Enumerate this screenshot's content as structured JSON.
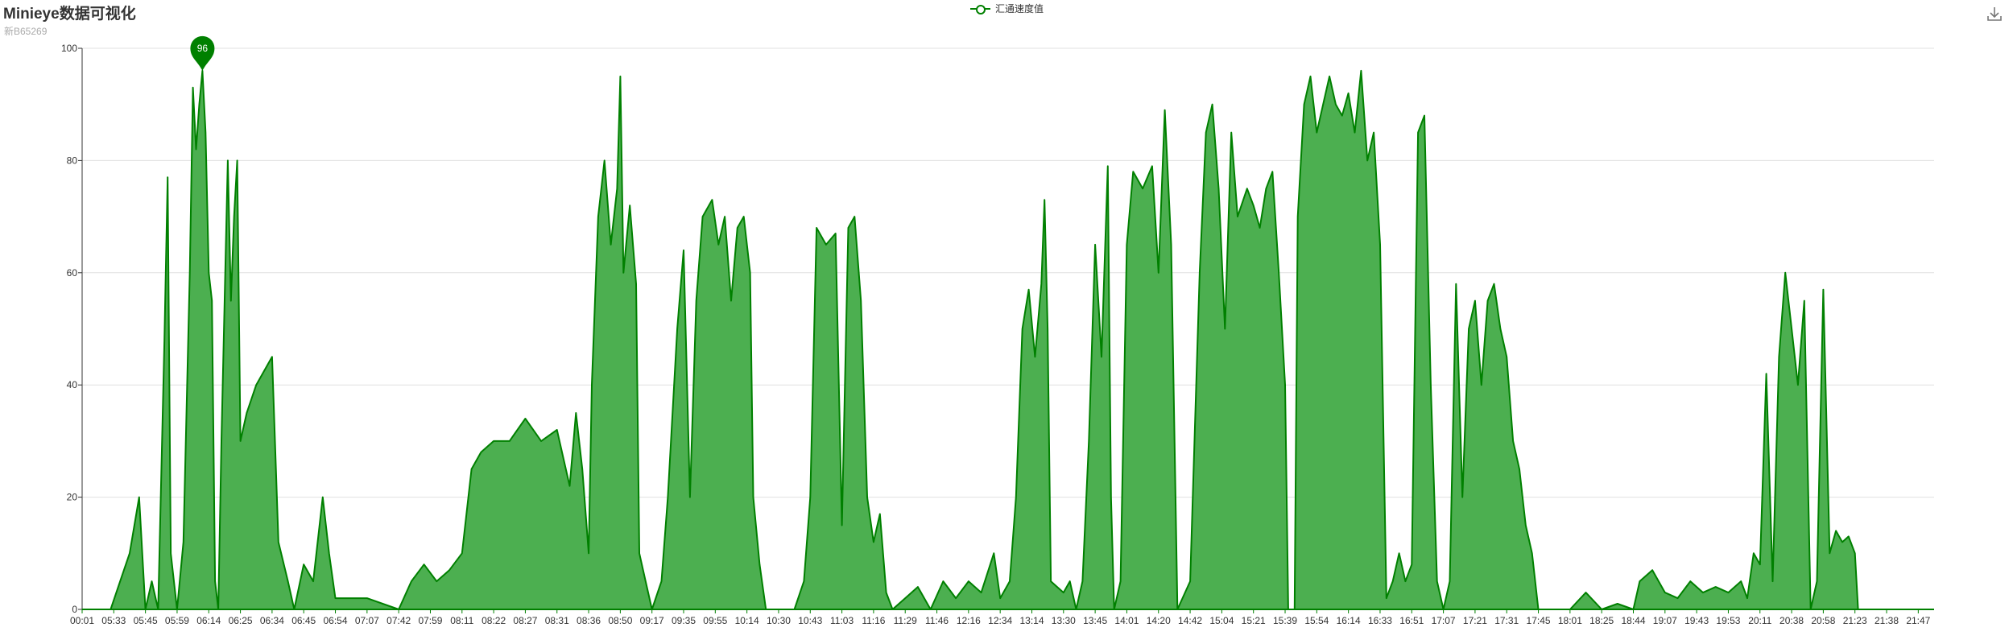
{
  "header": {
    "title": "Minieye数据可视化",
    "subtitle": "新B65269",
    "download_icon": "download-icon"
  },
  "colors": {
    "series": "#008000",
    "area": "#4caf50",
    "grid": "#e0e0e0",
    "axis": "#333333"
  },
  "chart_data": {
    "type": "area",
    "title": "Minieye数据可视化",
    "subtitle": "新B65269",
    "legend": "top-center",
    "grid": true,
    "xlabel": "",
    "ylabel": "",
    "ylim": [
      0,
      100
    ],
    "yticks": [
      0,
      20,
      40,
      60,
      80,
      100
    ],
    "xticks": [
      "00:01",
      "05:33",
      "05:45",
      "05:59",
      "06:14",
      "06:25",
      "06:34",
      "06:45",
      "06:54",
      "07:07",
      "07:42",
      "07:59",
      "08:11",
      "08:22",
      "08:27",
      "08:31",
      "08:36",
      "08:50",
      "09:17",
      "09:35",
      "09:55",
      "10:14",
      "10:30",
      "10:43",
      "11:03",
      "11:16",
      "11:29",
      "11:46",
      "12:16",
      "12:34",
      "13:14",
      "13:30",
      "13:45",
      "14:01",
      "14:20",
      "14:42",
      "15:04",
      "15:21",
      "15:39",
      "15:54",
      "16:14",
      "16:33",
      "16:51",
      "17:07",
      "17:21",
      "17:31",
      "17:45",
      "18:01",
      "18:25",
      "18:44",
      "19:07",
      "19:43",
      "19:53",
      "20:11",
      "20:38",
      "20:58",
      "21:23",
      "21:38",
      "21:47"
    ],
    "series": [
      {
        "name": "汇通速度值",
        "x_start": 0,
        "x_end": 58.5,
        "points": [
          [
            0,
            0
          ],
          [
            0.9,
            0
          ],
          [
            1.2,
            5
          ],
          [
            1.5,
            10
          ],
          [
            1.8,
            20
          ],
          [
            2.0,
            0
          ],
          [
            2.2,
            5
          ],
          [
            2.4,
            0
          ],
          [
            2.6,
            48
          ],
          [
            2.7,
            77
          ],
          [
            2.8,
            10
          ],
          [
            3.0,
            0
          ],
          [
            3.2,
            12
          ],
          [
            3.4,
            60
          ],
          [
            3.5,
            93
          ],
          [
            3.6,
            82
          ],
          [
            3.7,
            90
          ],
          [
            3.8,
            96
          ],
          [
            3.9,
            85
          ],
          [
            4.0,
            60
          ],
          [
            4.1,
            55
          ],
          [
            4.2,
            5
          ],
          [
            4.3,
            0
          ],
          [
            4.4,
            30
          ],
          [
            4.6,
            80
          ],
          [
            4.7,
            55
          ],
          [
            4.8,
            70
          ],
          [
            4.9,
            80
          ],
          [
            5.0,
            30
          ],
          [
            5.2,
            35
          ],
          [
            5.5,
            40
          ],
          [
            6.0,
            45
          ],
          [
            6.2,
            12
          ],
          [
            6.5,
            5
          ],
          [
            6.7,
            0
          ],
          [
            7.0,
            8
          ],
          [
            7.3,
            5
          ],
          [
            7.6,
            20
          ],
          [
            7.8,
            10
          ],
          [
            8.0,
            2
          ],
          [
            9.0,
            2
          ],
          [
            10.0,
            0
          ],
          [
            10.4,
            5
          ],
          [
            10.8,
            8
          ],
          [
            11.2,
            5
          ],
          [
            11.6,
            7
          ],
          [
            12.0,
            10
          ],
          [
            12.3,
            25
          ],
          [
            12.6,
            28
          ],
          [
            13.0,
            30
          ],
          [
            13.5,
            30
          ],
          [
            14.0,
            34
          ],
          [
            14.5,
            30
          ],
          [
            15.0,
            32
          ],
          [
            15.4,
            22
          ],
          [
            15.6,
            35
          ],
          [
            15.8,
            25
          ],
          [
            16.0,
            10
          ],
          [
            16.1,
            40
          ],
          [
            16.3,
            70
          ],
          [
            16.5,
            80
          ],
          [
            16.7,
            65
          ],
          [
            16.9,
            75
          ],
          [
            17.0,
            95
          ],
          [
            17.1,
            60
          ],
          [
            17.3,
            72
          ],
          [
            17.5,
            58
          ],
          [
            17.6,
            10
          ],
          [
            17.8,
            5
          ],
          [
            18.0,
            0
          ],
          [
            18.3,
            5
          ],
          [
            18.5,
            20
          ],
          [
            18.8,
            50
          ],
          [
            19.0,
            64
          ],
          [
            19.2,
            20
          ],
          [
            19.4,
            55
          ],
          [
            19.6,
            70
          ],
          [
            19.9,
            73
          ],
          [
            20.1,
            65
          ],
          [
            20.3,
            70
          ],
          [
            20.5,
            55
          ],
          [
            20.7,
            68
          ],
          [
            20.9,
            70
          ],
          [
            21.1,
            60
          ],
          [
            21.2,
            20
          ],
          [
            21.4,
            8
          ],
          [
            21.6,
            0
          ],
          [
            22.5,
            0
          ],
          [
            22.8,
            5
          ],
          [
            23.0,
            20
          ],
          [
            23.2,
            68
          ],
          [
            23.5,
            65
          ],
          [
            23.8,
            67
          ],
          [
            24.0,
            15
          ],
          [
            24.2,
            68
          ],
          [
            24.4,
            70
          ],
          [
            24.6,
            55
          ],
          [
            24.8,
            20
          ],
          [
            25.0,
            12
          ],
          [
            25.2,
            17
          ],
          [
            25.4,
            3
          ],
          [
            25.6,
            0
          ],
          [
            26.0,
            2
          ],
          [
            26.4,
            4
          ],
          [
            26.8,
            0
          ],
          [
            27.2,
            5
          ],
          [
            27.6,
            2
          ],
          [
            28.0,
            5
          ],
          [
            28.4,
            3
          ],
          [
            28.8,
            10
          ],
          [
            29.0,
            2
          ],
          [
            29.3,
            5
          ],
          [
            29.5,
            20
          ],
          [
            29.7,
            50
          ],
          [
            29.9,
            57
          ],
          [
            30.1,
            45
          ],
          [
            30.3,
            58
          ],
          [
            30.4,
            73
          ],
          [
            30.5,
            50
          ],
          [
            30.6,
            5
          ],
          [
            30.8,
            4
          ],
          [
            31.0,
            3
          ],
          [
            31.2,
            5
          ],
          [
            31.4,
            0
          ],
          [
            31.6,
            5
          ],
          [
            31.8,
            30
          ],
          [
            32.0,
            65
          ],
          [
            32.2,
            45
          ],
          [
            32.4,
            79
          ],
          [
            32.5,
            20
          ],
          [
            32.6,
            0
          ],
          [
            32.8,
            5
          ],
          [
            33.0,
            65
          ],
          [
            33.2,
            78
          ],
          [
            33.5,
            75
          ],
          [
            33.8,
            79
          ],
          [
            34.0,
            60
          ],
          [
            34.2,
            89
          ],
          [
            34.4,
            65
          ],
          [
            34.6,
            0
          ],
          [
            35.0,
            5
          ],
          [
            35.3,
            60
          ],
          [
            35.5,
            85
          ],
          [
            35.7,
            90
          ],
          [
            35.9,
            75
          ],
          [
            36.1,
            50
          ],
          [
            36.3,
            85
          ],
          [
            36.5,
            70
          ],
          [
            36.8,
            75
          ],
          [
            37.0,
            72
          ],
          [
            37.2,
            68
          ],
          [
            37.4,
            75
          ],
          [
            37.6,
            78
          ],
          [
            37.8,
            60
          ],
          [
            38.0,
            40
          ],
          [
            38.1,
            0
          ],
          [
            38.3,
            0
          ],
          [
            38.4,
            70
          ],
          [
            38.6,
            90
          ],
          [
            38.8,
            95
          ],
          [
            39.0,
            85
          ],
          [
            39.2,
            90
          ],
          [
            39.4,
            95
          ],
          [
            39.6,
            90
          ],
          [
            39.8,
            88
          ],
          [
            40.0,
            92
          ],
          [
            40.2,
            85
          ],
          [
            40.4,
            96
          ],
          [
            40.6,
            80
          ],
          [
            40.8,
            85
          ],
          [
            41.0,
            65
          ],
          [
            41.2,
            2
          ],
          [
            41.4,
            5
          ],
          [
            41.6,
            10
          ],
          [
            41.8,
            5
          ],
          [
            42.0,
            8
          ],
          [
            42.2,
            85
          ],
          [
            42.4,
            88
          ],
          [
            42.6,
            40
          ],
          [
            42.8,
            5
          ],
          [
            43.0,
            0
          ],
          [
            43.2,
            5
          ],
          [
            43.4,
            58
          ],
          [
            43.6,
            20
          ],
          [
            43.8,
            50
          ],
          [
            44.0,
            55
          ],
          [
            44.2,
            40
          ],
          [
            44.4,
            55
          ],
          [
            44.6,
            58
          ],
          [
            44.8,
            50
          ],
          [
            45.0,
            45
          ],
          [
            45.2,
            30
          ],
          [
            45.4,
            25
          ],
          [
            45.6,
            15
          ],
          [
            45.8,
            10
          ],
          [
            46.0,
            0
          ],
          [
            47.0,
            0
          ],
          [
            47.5,
            3
          ],
          [
            48.0,
            0
          ],
          [
            48.5,
            1
          ],
          [
            49.0,
            0
          ],
          [
            49.2,
            5
          ],
          [
            49.6,
            7
          ],
          [
            50.0,
            3
          ],
          [
            50.4,
            2
          ],
          [
            50.8,
            5
          ],
          [
            51.2,
            3
          ],
          [
            51.6,
            4
          ],
          [
            52.0,
            3
          ],
          [
            52.4,
            5
          ],
          [
            52.6,
            2
          ],
          [
            52.8,
            10
          ],
          [
            53.0,
            8
          ],
          [
            53.2,
            42
          ],
          [
            53.4,
            5
          ],
          [
            53.6,
            45
          ],
          [
            53.8,
            60
          ],
          [
            54.0,
            50
          ],
          [
            54.2,
            40
          ],
          [
            54.4,
            55
          ],
          [
            54.6,
            0
          ],
          [
            54.8,
            5
          ],
          [
            55.0,
            57
          ],
          [
            55.2,
            10
          ],
          [
            55.4,
            14
          ],
          [
            55.6,
            12
          ],
          [
            55.8,
            13
          ],
          [
            56.0,
            10
          ],
          [
            56.1,
            0
          ],
          [
            58.5,
            0
          ]
        ],
        "marker": {
          "label": "96",
          "x": 3.8,
          "y": 96
        }
      }
    ]
  }
}
